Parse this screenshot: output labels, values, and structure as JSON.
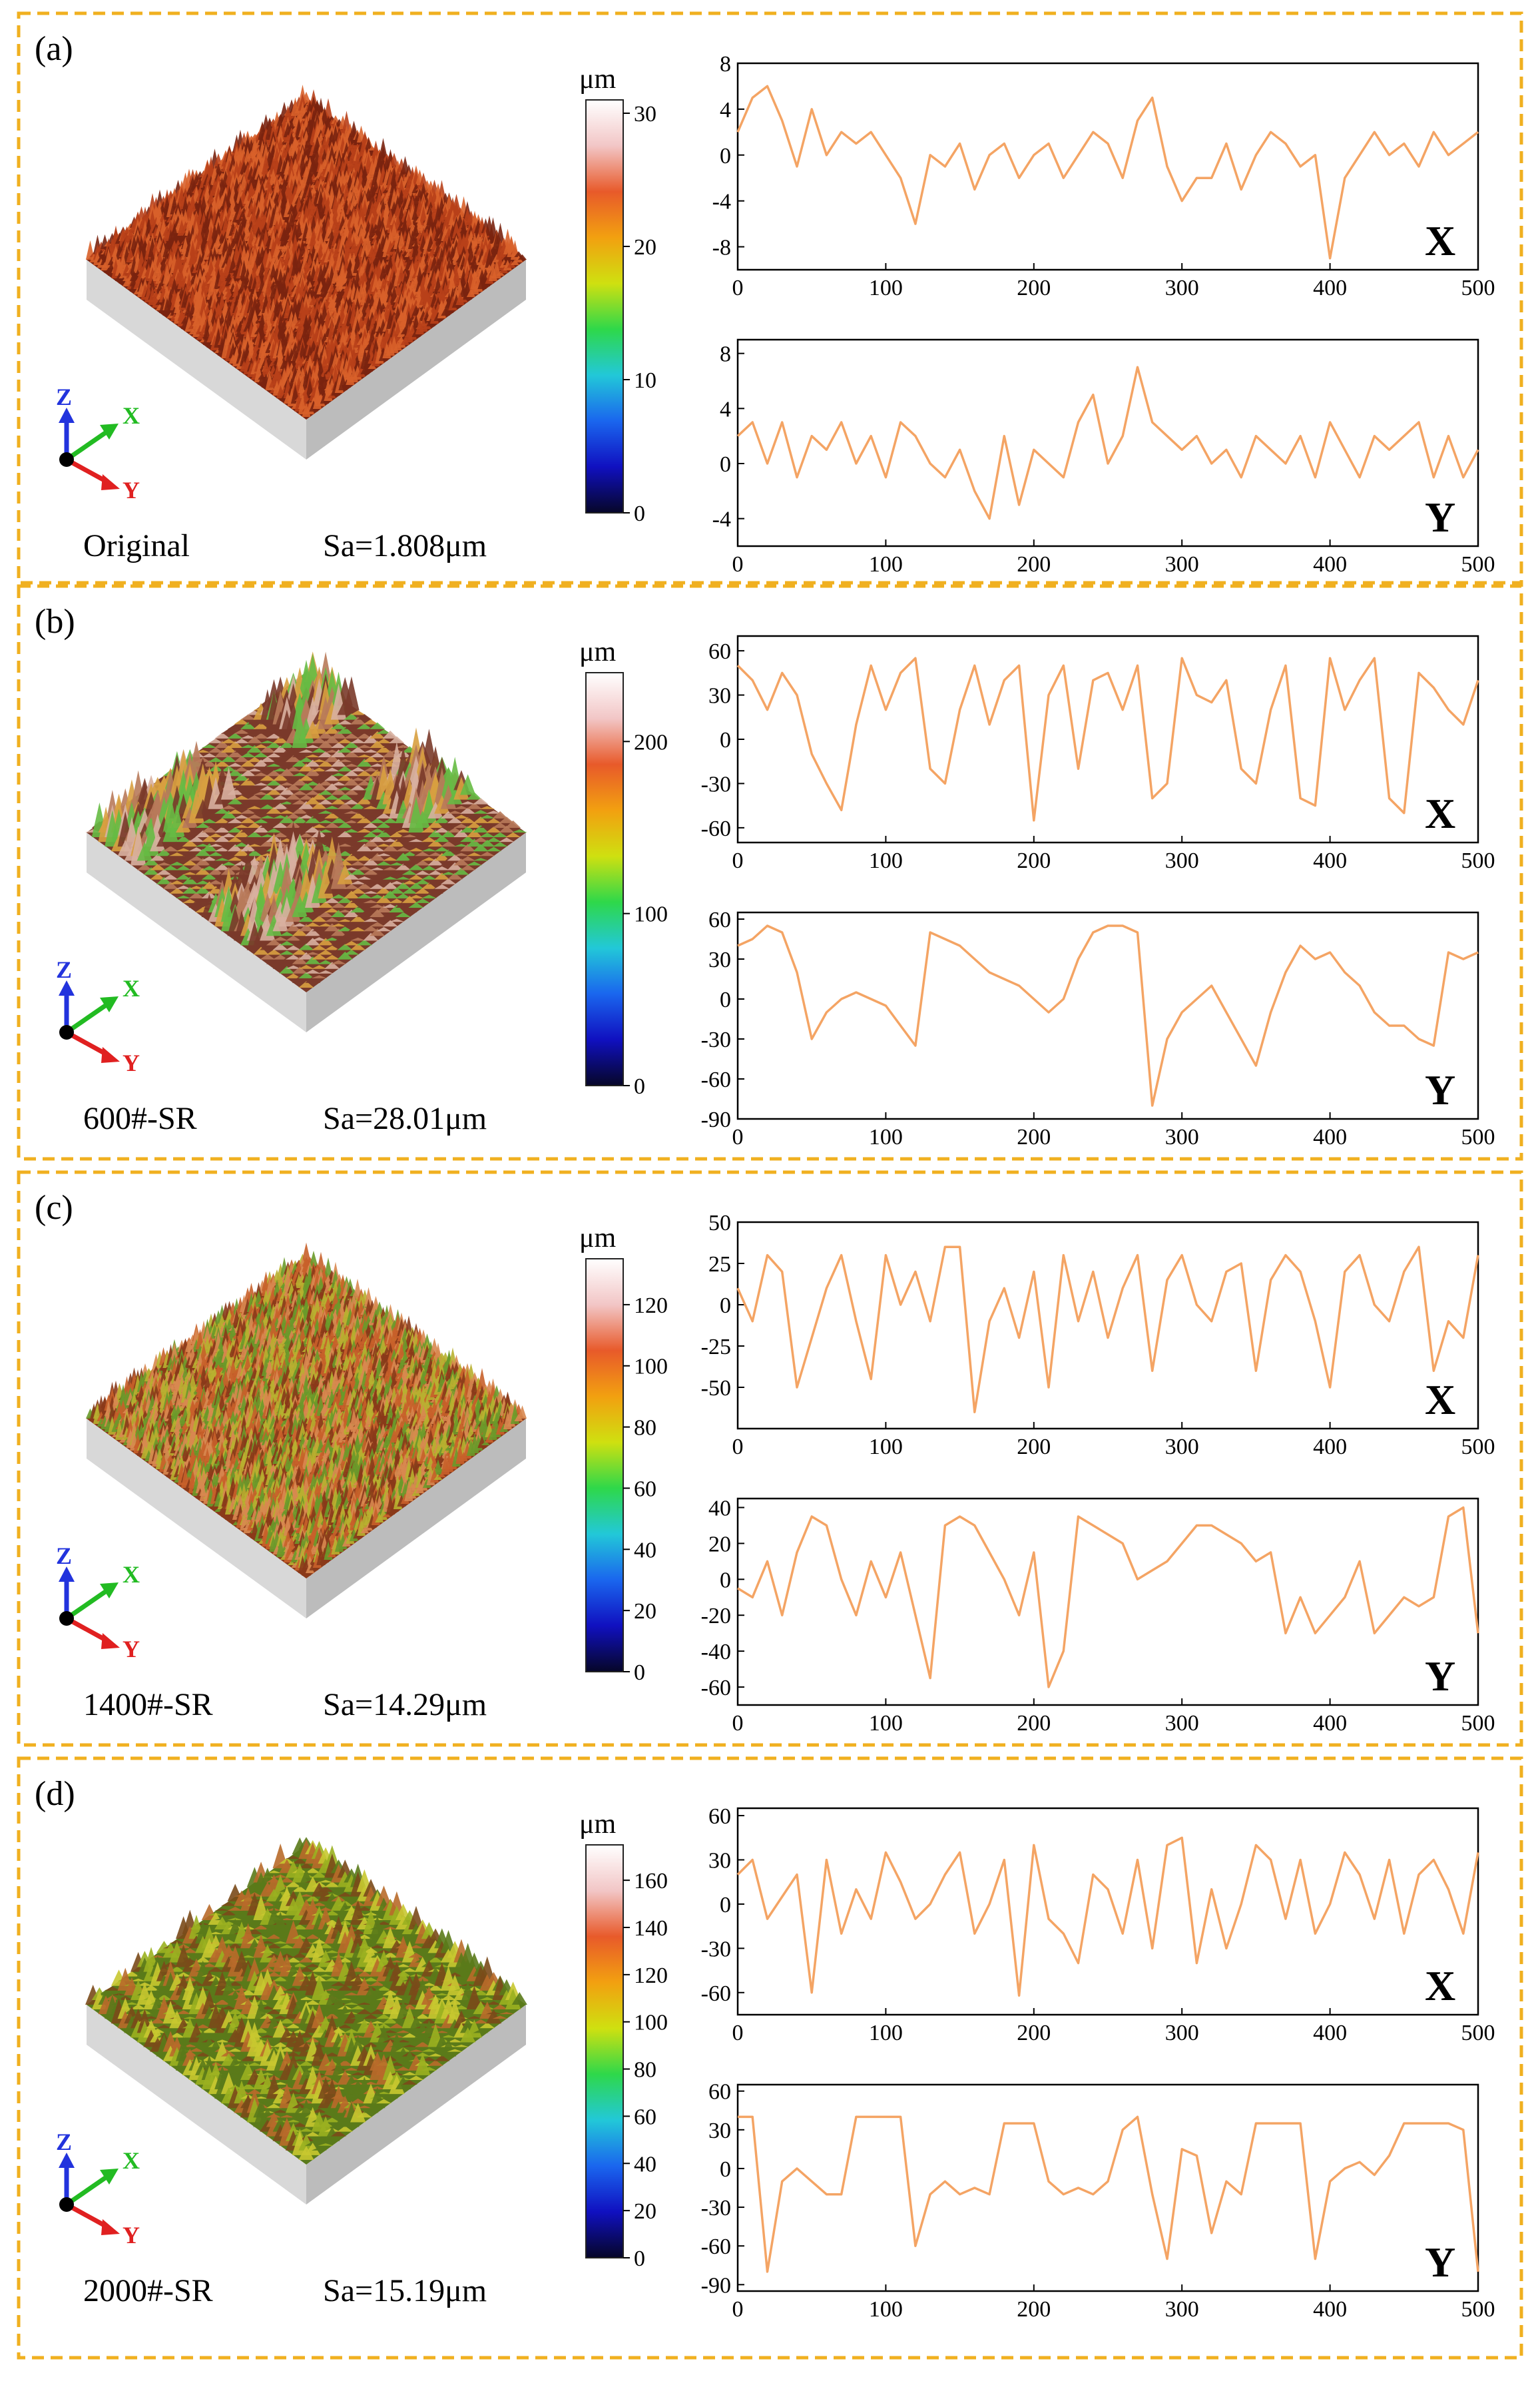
{
  "colors": {
    "frame": "#f0b020",
    "profile_line": "#f4a464",
    "axis_x": "#22bb22",
    "axis_y": "#e02020",
    "axis_z": "#2233dd"
  },
  "colormap_stops": [
    "#ffffff",
    "#f2c6c6",
    "#e85a2a",
    "#f2a010",
    "#cfe010",
    "#2ed84a",
    "#22c8d8",
    "#1a66ee",
    "#1010c0",
    "#060628"
  ],
  "panels": [
    {
      "label": "(a)",
      "sample": "Original",
      "sa": "Sa=1.808μm",
      "surface": {
        "palette": [
          "#7a2410",
          "#b8401a",
          "#d8602a"
        ],
        "style": "spiky"
      },
      "colorbar": {
        "unit": "μm",
        "ticks": [
          "0",
          "10",
          "20",
          "30"
        ],
        "min": 0,
        "max": 31
      },
      "chart_data": [
        {
          "type": "line",
          "title": "X",
          "x": [
            0,
            10,
            20,
            30,
            40,
            50,
            60,
            70,
            80,
            90,
            100,
            110,
            120,
            130,
            140,
            150,
            160,
            170,
            180,
            190,
            200,
            210,
            220,
            230,
            240,
            250,
            260,
            270,
            280,
            290,
            300,
            310,
            320,
            330,
            340,
            350,
            360,
            370,
            380,
            390,
            400,
            410,
            420,
            430,
            440,
            450,
            460,
            470,
            480,
            490,
            500
          ],
          "y": [
            2,
            5,
            6,
            3,
            -1,
            4,
            0,
            2,
            1,
            2,
            0,
            -2,
            -6,
            0,
            -1,
            1,
            -3,
            0,
            1,
            -2,
            0,
            1,
            -2,
            0,
            2,
            1,
            -2,
            3,
            5,
            -1,
            -4,
            -2,
            -2,
            1,
            -3,
            0,
            2,
            1,
            -1,
            0,
            -9,
            -2,
            0,
            2,
            0,
            1,
            -1,
            2,
            0,
            1,
            2
          ],
          "xlim": [
            0,
            500
          ],
          "ylim": [
            -10,
            8
          ],
          "yticks": [
            -8,
            -4,
            0,
            4,
            8
          ],
          "xticks": [
            0,
            100,
            200,
            300,
            400,
            500
          ]
        },
        {
          "type": "line",
          "title": "Y",
          "x": [
            0,
            10,
            20,
            30,
            40,
            50,
            60,
            70,
            80,
            90,
            100,
            110,
            120,
            130,
            140,
            150,
            160,
            170,
            180,
            190,
            200,
            210,
            220,
            230,
            240,
            250,
            260,
            270,
            280,
            290,
            300,
            310,
            320,
            330,
            340,
            350,
            360,
            370,
            380,
            390,
            400,
            410,
            420,
            430,
            440,
            450,
            460,
            470,
            480,
            490,
            500
          ],
          "y": [
            2,
            3,
            0,
            3,
            -1,
            2,
            1,
            3,
            0,
            2,
            -1,
            3,
            2,
            0,
            -1,
            1,
            -2,
            -4,
            2,
            -3,
            1,
            0,
            -1,
            3,
            5,
            0,
            2,
            7,
            3,
            2,
            1,
            2,
            0,
            1,
            -1,
            2,
            1,
            0,
            2,
            -1,
            3,
            1,
            -1,
            2,
            1,
            2,
            3,
            -1,
            2,
            -1,
            1
          ],
          "xlim": [
            0,
            500
          ],
          "ylim": [
            -6,
            9
          ],
          "yticks": [
            -4,
            0,
            4,
            8
          ],
          "xticks": [
            0,
            100,
            200,
            300,
            400,
            500
          ]
        }
      ]
    },
    {
      "label": "(b)",
      "sample": "600#-SR",
      "sa": "Sa=28.01μm",
      "surface": {
        "palette": [
          "#7a3a2a",
          "#b87a5a",
          "#d8a040",
          "#66bb44",
          "#d8b0a0"
        ],
        "style": "ridges"
      },
      "colorbar": {
        "unit": "μm",
        "ticks": [
          "0",
          "100",
          "200"
        ],
        "min": 0,
        "max": 240
      },
      "chart_data": [
        {
          "type": "line",
          "title": "X",
          "x": [
            0,
            10,
            20,
            30,
            40,
            50,
            60,
            70,
            80,
            90,
            100,
            110,
            120,
            130,
            140,
            150,
            160,
            170,
            180,
            190,
            200,
            210,
            220,
            230,
            240,
            250,
            260,
            270,
            280,
            290,
            300,
            310,
            320,
            330,
            340,
            350,
            360,
            370,
            380,
            390,
            400,
            410,
            420,
            430,
            440,
            450,
            460,
            470,
            480,
            490,
            500
          ],
          "y": [
            50,
            40,
            20,
            45,
            30,
            -10,
            -30,
            -48,
            10,
            50,
            20,
            45,
            55,
            -20,
            -30,
            20,
            50,
            10,
            40,
            50,
            -55,
            30,
            50,
            -20,
            40,
            45,
            20,
            50,
            -40,
            -30,
            55,
            30,
            25,
            40,
            -20,
            -30,
            20,
            50,
            -40,
            -45,
            55,
            20,
            40,
            55,
            -40,
            -50,
            45,
            35,
            20,
            10,
            40
          ],
          "xlim": [
            0,
            500
          ],
          "ylim": [
            -70,
            70
          ],
          "yticks": [
            -60,
            -30,
            0,
            30,
            60
          ],
          "xticks": [
            0,
            100,
            200,
            300,
            400,
            500
          ]
        },
        {
          "type": "line",
          "title": "Y",
          "x": [
            0,
            10,
            20,
            30,
            40,
            50,
            60,
            70,
            80,
            90,
            100,
            110,
            120,
            130,
            140,
            150,
            160,
            170,
            180,
            190,
            200,
            210,
            220,
            230,
            240,
            250,
            260,
            270,
            280,
            290,
            300,
            310,
            320,
            330,
            340,
            350,
            360,
            370,
            380,
            390,
            400,
            410,
            420,
            430,
            440,
            450,
            460,
            470,
            480,
            490,
            500
          ],
          "y": [
            40,
            45,
            55,
            50,
            20,
            -30,
            -10,
            0,
            5,
            0,
            -5,
            -20,
            -35,
            50,
            45,
            40,
            30,
            20,
            15,
            10,
            0,
            -10,
            0,
            30,
            50,
            55,
            55,
            50,
            -80,
            -30,
            -10,
            0,
            10,
            -10,
            -30,
            -50,
            -10,
            20,
            40,
            30,
            35,
            20,
            10,
            -10,
            -20,
            -20,
            -30,
            -35,
            35,
            30,
            35
          ],
          "xlim": [
            0,
            500
          ],
          "ylim": [
            -90,
            65
          ],
          "yticks": [
            -90,
            -60,
            -30,
            0,
            30,
            60
          ],
          "xticks": [
            0,
            100,
            200,
            300,
            400,
            500
          ]
        }
      ]
    },
    {
      "label": "(c)",
      "sample": "1400#-SR",
      "sa": "Sa=14.29μm",
      "surface": {
        "palette": [
          "#8a3a1a",
          "#c8602a",
          "#b8b030",
          "#6a9a2a",
          "#d88850"
        ],
        "style": "spiky"
      },
      "colorbar": {
        "unit": "μm",
        "ticks": [
          "0",
          "20",
          "40",
          "60",
          "80",
          "100",
          "120"
        ],
        "min": 0,
        "max": 135
      },
      "chart_data": [
        {
          "type": "line",
          "title": "X",
          "x": [
            0,
            10,
            20,
            30,
            40,
            50,
            60,
            70,
            80,
            90,
            100,
            110,
            120,
            130,
            140,
            150,
            160,
            170,
            180,
            190,
            200,
            210,
            220,
            230,
            240,
            250,
            260,
            270,
            280,
            290,
            300,
            310,
            320,
            330,
            340,
            350,
            360,
            370,
            380,
            390,
            400,
            410,
            420,
            430,
            440,
            450,
            460,
            470,
            480,
            490,
            500
          ],
          "y": [
            10,
            -10,
            30,
            20,
            -50,
            -20,
            10,
            30,
            -10,
            -45,
            30,
            0,
            20,
            -10,
            35,
            35,
            -65,
            -10,
            10,
            -20,
            20,
            -50,
            30,
            -10,
            20,
            -20,
            10,
            30,
            -40,
            15,
            30,
            0,
            -10,
            20,
            25,
            -40,
            15,
            30,
            20,
            -10,
            -50,
            20,
            30,
            0,
            -10,
            20,
            35,
            -40,
            -10,
            -20,
            30
          ],
          "xlim": [
            0,
            500
          ],
          "ylim": [
            -75,
            50
          ],
          "yticks": [
            -50,
            -25,
            0,
            25,
            50
          ],
          "xticks": [
            0,
            100,
            200,
            300,
            400,
            500
          ]
        },
        {
          "type": "line",
          "title": "Y",
          "x": [
            0,
            10,
            20,
            30,
            40,
            50,
            60,
            70,
            80,
            90,
            100,
            110,
            120,
            130,
            140,
            150,
            160,
            170,
            180,
            190,
            200,
            210,
            220,
            230,
            240,
            250,
            260,
            270,
            280,
            290,
            300,
            310,
            320,
            330,
            340,
            350,
            360,
            370,
            380,
            390,
            400,
            410,
            420,
            430,
            440,
            450,
            460,
            470,
            480,
            490,
            500
          ],
          "y": [
            -5,
            -10,
            10,
            -20,
            15,
            35,
            30,
            0,
            -20,
            10,
            -10,
            15,
            -20,
            -55,
            30,
            35,
            30,
            15,
            0,
            -20,
            15,
            -60,
            -40,
            35,
            30,
            25,
            20,
            0,
            5,
            10,
            20,
            30,
            30,
            25,
            20,
            10,
            15,
            -30,
            -10,
            -30,
            -20,
            -10,
            10,
            -30,
            -20,
            -10,
            -15,
            -10,
            35,
            40,
            -30
          ],
          "xlim": [
            0,
            500
          ],
          "ylim": [
            -70,
            45
          ],
          "yticks": [
            -60,
            -40,
            -20,
            0,
            20,
            40
          ],
          "xticks": [
            0,
            100,
            200,
            300,
            400,
            500
          ]
        }
      ]
    },
    {
      "label": "(d)",
      "sample": "2000#-SR",
      "sa": "Sa=15.19μm",
      "surface": {
        "palette": [
          "#5a7a1a",
          "#9ab020",
          "#c8c830",
          "#7a4a1a",
          "#b86a2a"
        ],
        "style": "grooves"
      },
      "colorbar": {
        "unit": "μm",
        "ticks": [
          "0",
          "20",
          "40",
          "60",
          "80",
          "100",
          "120",
          "140",
          "160"
        ],
        "min": 0,
        "max": 175
      },
      "chart_data": [
        {
          "type": "line",
          "title": "X",
          "x": [
            0,
            10,
            20,
            30,
            40,
            50,
            60,
            70,
            80,
            90,
            100,
            110,
            120,
            130,
            140,
            150,
            160,
            170,
            180,
            190,
            200,
            210,
            220,
            230,
            240,
            250,
            260,
            270,
            280,
            290,
            300,
            310,
            320,
            330,
            340,
            350,
            360,
            370,
            380,
            390,
            400,
            410,
            420,
            430,
            440,
            450,
            460,
            470,
            480,
            490,
            500
          ],
          "y": [
            20,
            30,
            -10,
            5,
            20,
            -60,
            30,
            -20,
            10,
            -10,
            35,
            15,
            -10,
            0,
            20,
            35,
            -20,
            0,
            30,
            -62,
            40,
            -10,
            -20,
            -40,
            20,
            10,
            -20,
            30,
            -30,
            40,
            45,
            -40,
            10,
            -30,
            0,
            40,
            30,
            -10,
            30,
            -20,
            0,
            35,
            20,
            -10,
            30,
            -20,
            20,
            30,
            10,
            -20,
            35
          ],
          "xlim": [
            0,
            500
          ],
          "ylim": [
            -75,
            65
          ],
          "yticks": [
            -60,
            -30,
            0,
            30,
            60
          ],
          "xticks": [
            0,
            100,
            200,
            300,
            400,
            500
          ]
        },
        {
          "type": "line",
          "title": "Y",
          "x": [
            0,
            10,
            20,
            30,
            40,
            50,
            60,
            70,
            80,
            90,
            100,
            110,
            120,
            130,
            140,
            150,
            160,
            170,
            180,
            190,
            200,
            210,
            220,
            230,
            240,
            250,
            260,
            270,
            280,
            290,
            300,
            310,
            320,
            330,
            340,
            350,
            360,
            370,
            380,
            390,
            400,
            410,
            420,
            430,
            440,
            450,
            460,
            470,
            480,
            490,
            500
          ],
          "y": [
            40,
            40,
            -80,
            -10,
            0,
            -10,
            -20,
            -20,
            40,
            40,
            40,
            40,
            -60,
            -20,
            -10,
            -20,
            -15,
            -20,
            35,
            35,
            35,
            -10,
            -20,
            -15,
            -20,
            -10,
            30,
            40,
            -20,
            -70,
            15,
            10,
            -50,
            -10,
            -20,
            35,
            35,
            35,
            35,
            -70,
            -10,
            0,
            5,
            -5,
            10,
            35,
            35,
            35,
            35,
            30,
            -80
          ],
          "xlim": [
            0,
            500
          ],
          "ylim": [
            -95,
            65
          ],
          "yticks": [
            -90,
            -60,
            -30,
            0,
            30,
            60
          ],
          "xticks": [
            0,
            100,
            200,
            300,
            400,
            500
          ]
        }
      ]
    }
  ],
  "axes_labels": {
    "x": "X",
    "y": "Y",
    "z": "Z"
  }
}
